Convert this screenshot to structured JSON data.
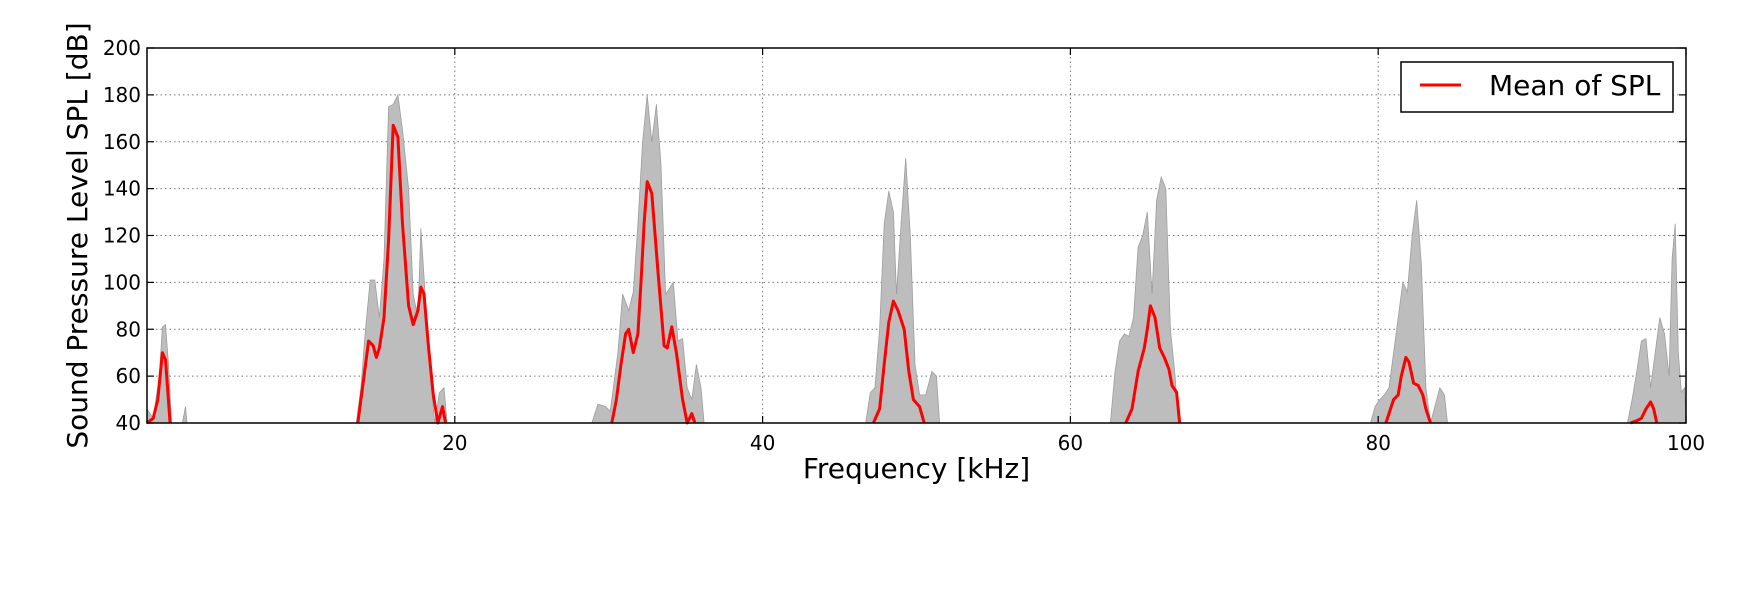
{
  "chart_data": {
    "type": "area",
    "title": "",
    "xlabel": "Frequency [kHz]",
    "ylabel": "Sound Pressure Level SPL [dB]",
    "xlim": [
      0,
      100
    ],
    "ylim": [
      40,
      200
    ],
    "x_ticks": [
      20,
      40,
      60,
      80,
      100
    ],
    "y_ticks": [
      40,
      60,
      80,
      100,
      120,
      140,
      160,
      180,
      200
    ],
    "grid": true,
    "grid_style": "dotted",
    "legend_position": "top-right",
    "colors": {
      "mean_line": "#ff0000",
      "band_fill": "#bdbdbd",
      "band_edge": "#9e9e9e",
      "axis": "#000000"
    },
    "series": [
      {
        "name": "Mean of SPL",
        "kind": "line",
        "segments": [
          [
            [
              0.0,
              40
            ],
            [
              0.4,
              42
            ],
            [
              0.7,
              50
            ],
            [
              1.0,
              70
            ],
            [
              1.2,
              67
            ],
            [
              1.5,
              40
            ]
          ],
          [
            [
              13.7,
              40
            ],
            [
              14.0,
              55
            ],
            [
              14.4,
              75
            ],
            [
              14.7,
              73
            ],
            [
              14.9,
              68
            ],
            [
              15.1,
              72
            ],
            [
              15.4,
              85
            ],
            [
              15.7,
              118
            ],
            [
              16.0,
              167
            ],
            [
              16.3,
              162
            ],
            [
              16.6,
              125
            ],
            [
              17.0,
              90
            ],
            [
              17.3,
              82
            ],
            [
              17.6,
              88
            ],
            [
              17.8,
              98
            ],
            [
              18.0,
              95
            ],
            [
              18.3,
              72
            ],
            [
              18.6,
              52
            ],
            [
              18.9,
              40
            ],
            [
              19.2,
              47
            ],
            [
              19.4,
              40
            ]
          ],
          [
            [
              30.2,
              40
            ],
            [
              30.5,
              50
            ],
            [
              30.8,
              65
            ],
            [
              31.1,
              78
            ],
            [
              31.3,
              80
            ],
            [
              31.6,
              70
            ],
            [
              31.9,
              78
            ],
            [
              32.1,
              100
            ],
            [
              32.3,
              125
            ],
            [
              32.5,
              143
            ],
            [
              32.8,
              138
            ],
            [
              33.2,
              105
            ],
            [
              33.6,
              73
            ],
            [
              33.8,
              72
            ],
            [
              34.1,
              81
            ],
            [
              34.4,
              70
            ],
            [
              34.8,
              50
            ],
            [
              35.1,
              40
            ],
            [
              35.4,
              44
            ],
            [
              35.6,
              40
            ]
          ],
          [
            [
              47.2,
              40
            ],
            [
              47.6,
              46
            ],
            [
              47.9,
              65
            ],
            [
              48.2,
              83
            ],
            [
              48.5,
              92
            ],
            [
              48.8,
              88
            ],
            [
              49.2,
              80
            ],
            [
              49.5,
              62
            ],
            [
              49.8,
              50
            ],
            [
              50.2,
              47
            ],
            [
              50.5,
              40
            ]
          ],
          [
            [
              63.6,
              40
            ],
            [
              64.0,
              46
            ],
            [
              64.4,
              62
            ],
            [
              64.8,
              72
            ],
            [
              65.0,
              80
            ],
            [
              65.2,
              90
            ],
            [
              65.5,
              85
            ],
            [
              65.8,
              72
            ],
            [
              66.1,
              68
            ],
            [
              66.4,
              63
            ],
            [
              66.6,
              56
            ],
            [
              66.9,
              53
            ],
            [
              67.1,
              40
            ]
          ],
          [
            [
              80.5,
              40
            ],
            [
              80.8,
              46
            ],
            [
              81.0,
              50
            ],
            [
              81.3,
              52
            ],
            [
              81.5,
              60
            ],
            [
              81.8,
              68
            ],
            [
              82.0,
              66
            ],
            [
              82.3,
              57
            ],
            [
              82.6,
              56
            ],
            [
              82.9,
              52
            ],
            [
              83.1,
              46
            ],
            [
              83.4,
              40
            ]
          ],
          [
            [
              96.4,
              40
            ],
            [
              96.8,
              41
            ],
            [
              97.1,
              42
            ],
            [
              97.4,
              46
            ],
            [
              97.7,
              49
            ],
            [
              97.9,
              46
            ],
            [
              98.1,
              40
            ]
          ]
        ]
      },
      {
        "name": "",
        "kind": "band",
        "polygons": [
          [
            [
              0.0,
              40
            ],
            [
              0.0,
              46
            ],
            [
              0.4,
              42
            ],
            [
              0.8,
              60
            ],
            [
              1.0,
              81
            ],
            [
              1.2,
              82
            ],
            [
              1.4,
              65
            ],
            [
              1.6,
              40
            ],
            [
              2.3,
              40
            ],
            [
              2.5,
              47
            ],
            [
              2.6,
              40
            ]
          ],
          [
            [
              13.6,
              40
            ],
            [
              13.9,
              55
            ],
            [
              14.2,
              80
            ],
            [
              14.5,
              101
            ],
            [
              14.8,
              101
            ],
            [
              15.1,
              85
            ],
            [
              15.4,
              110
            ],
            [
              15.7,
              175
            ],
            [
              16.0,
              176
            ],
            [
              16.3,
              180
            ],
            [
              16.6,
              165
            ],
            [
              17.0,
              140
            ],
            [
              17.3,
              95
            ],
            [
              17.6,
              85
            ],
            [
              17.8,
              123
            ],
            [
              18.1,
              92
            ],
            [
              18.4,
              60
            ],
            [
              18.7,
              40
            ],
            [
              19.0,
              53
            ],
            [
              19.3,
              55
            ],
            [
              19.5,
              40
            ]
          ],
          [
            [
              28.9,
              40
            ],
            [
              29.3,
              48
            ],
            [
              29.8,
              47
            ],
            [
              30.1,
              45
            ],
            [
              30.6,
              70
            ],
            [
              30.9,
              95
            ],
            [
              31.3,
              88
            ],
            [
              31.6,
              96
            ],
            [
              31.9,
              125
            ],
            [
              32.2,
              160
            ],
            [
              32.5,
              180
            ],
            [
              32.8,
              160
            ],
            [
              33.1,
              176
            ],
            [
              33.4,
              150
            ],
            [
              33.7,
              95
            ],
            [
              34.0,
              98
            ],
            [
              34.2,
              100
            ],
            [
              34.5,
              75
            ],
            [
              34.8,
              76
            ],
            [
              35.1,
              55
            ],
            [
              35.4,
              50
            ],
            [
              35.7,
              65
            ],
            [
              36.0,
              55
            ],
            [
              36.2,
              40
            ]
          ],
          [
            [
              46.7,
              40
            ],
            [
              47.0,
              53
            ],
            [
              47.3,
              55
            ],
            [
              47.6,
              80
            ],
            [
              47.9,
              125
            ],
            [
              48.2,
              139
            ],
            [
              48.5,
              130
            ],
            [
              48.7,
              95
            ],
            [
              49.0,
              125
            ],
            [
              49.3,
              153
            ],
            [
              49.6,
              120
            ],
            [
              49.9,
              65
            ],
            [
              50.2,
              52
            ],
            [
              50.6,
              52
            ],
            [
              51.0,
              62
            ],
            [
              51.3,
              60
            ],
            [
              51.5,
              40
            ]
          ],
          [
            [
              62.6,
              40
            ],
            [
              62.9,
              62
            ],
            [
              63.2,
              75
            ],
            [
              63.5,
              78
            ],
            [
              63.8,
              77
            ],
            [
              64.1,
              85
            ],
            [
              64.4,
              115
            ],
            [
              64.7,
              120
            ],
            [
              65.0,
              130
            ],
            [
              65.3,
              95
            ],
            [
              65.6,
              135
            ],
            [
              65.9,
              145
            ],
            [
              66.2,
              140
            ],
            [
              66.5,
              80
            ],
            [
              66.8,
              60
            ],
            [
              67.0,
              40
            ]
          ],
          [
            [
              79.5,
              40
            ],
            [
              79.8,
              47
            ],
            [
              80.1,
              50
            ],
            [
              80.4,
              52
            ],
            [
              80.7,
              55
            ],
            [
              81.0,
              70
            ],
            [
              81.3,
              85
            ],
            [
              81.6,
              100
            ],
            [
              81.9,
              96
            ],
            [
              82.2,
              120
            ],
            [
              82.5,
              135
            ],
            [
              82.8,
              108
            ],
            [
              83.1,
              55
            ],
            [
              83.4,
              40
            ],
            [
              84.0,
              55
            ],
            [
              84.3,
              52
            ],
            [
              84.5,
              40
            ]
          ],
          [
            [
              96.2,
              40
            ],
            [
              96.5,
              50
            ],
            [
              96.8,
              62
            ],
            [
              97.1,
              75
            ],
            [
              97.4,
              76
            ],
            [
              97.7,
              55
            ],
            [
              98.0,
              70
            ],
            [
              98.3,
              85
            ],
            [
              98.6,
              78
            ],
            [
              98.9,
              60
            ],
            [
              99.1,
              110
            ],
            [
              99.3,
              125
            ],
            [
              99.5,
              70
            ],
            [
              99.7,
              53
            ],
            [
              99.9,
              55
            ],
            [
              100.0,
              40
            ]
          ]
        ]
      }
    ]
  }
}
